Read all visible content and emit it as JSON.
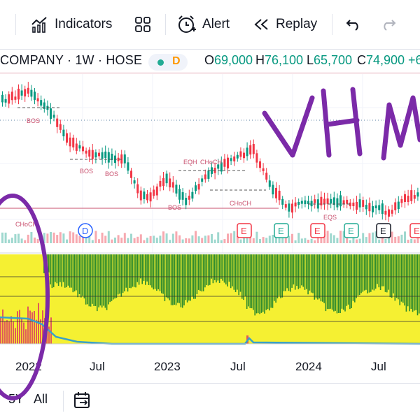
{
  "toolbar": {
    "indicators_label": "Indicators",
    "alert_label": "Alert",
    "replay_label": "Replay"
  },
  "symbol": {
    "name": "COMPANY · 1W · HOSE",
    "badge": "D",
    "open_label": "O",
    "open": "69,000",
    "high_label": "H",
    "high": "76,100",
    "low_label": "L",
    "low": "65,700",
    "close_label": "C",
    "close": "74,900",
    "change": "+6"
  },
  "chart_annotations": {
    "bos": "BOS",
    "choch": "CHoCH",
    "eqh": "EQH",
    "eqs": "EQS",
    "event_d": "D",
    "event_e": "E"
  },
  "handwritten_text": "VHM",
  "xaxis": {
    "labels": [
      "2022",
      "Jul",
      "2023",
      "Jul",
      "2024",
      "Jul"
    ]
  },
  "ranges": {
    "five_year": "5Y",
    "all": "All"
  },
  "colors": {
    "up": "#089981",
    "down": "#f23645",
    "indicator_green": "#2e8b2e",
    "indicator_yellow": "#f5f032",
    "indicator_red": "#e05a5a",
    "indicator_line": "#3aa0c8",
    "marker_purple": "#7b2aa8",
    "event_d": "#2962ff"
  }
}
